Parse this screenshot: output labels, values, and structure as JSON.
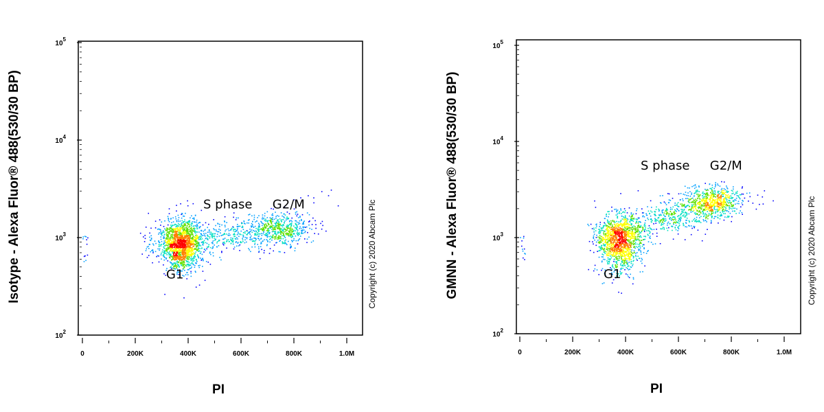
{
  "chart_data": [
    {
      "type": "scatter",
      "panel": "isotype",
      "xlabel": "PI",
      "ylabel": "Isotype - Alexa Fluor® 488(530/30 BP)",
      "x_scale": "linear",
      "y_scale": "log",
      "xlim": [
        0,
        1000000
      ],
      "ylim": [
        100,
        100000
      ],
      "x_ticks": [
        {
          "value": 0,
          "label": "0"
        },
        {
          "value": 200000,
          "label": "200K"
        },
        {
          "value": 400000,
          "label": "400K"
        },
        {
          "value": 600000,
          "label": "600K"
        },
        {
          "value": 800000,
          "label": "800K"
        },
        {
          "value": 1000000,
          "label": "1.0M"
        }
      ],
      "y_ticks": [
        {
          "value": 100,
          "base": "10",
          "exp": "2"
        },
        {
          "value": 1000,
          "base": "10",
          "exp": "3"
        },
        {
          "value": 10000,
          "base": "10",
          "exp": "4"
        },
        {
          "value": 100000,
          "base": "10",
          "exp": "5"
        }
      ],
      "populations": [
        {
          "name": "G1",
          "x_center": 375000,
          "y_center": 850,
          "x_spread": 35000,
          "y_spread_log": 0.13,
          "share": 0.55
        },
        {
          "name": "S phase",
          "x_start": 250000,
          "x_end": 780000,
          "y_start": 900,
          "y_end": 1200,
          "share": 0.3
        },
        {
          "name": "G2/M",
          "x_center": 760000,
          "y_center": 1250,
          "x_spread": 55000,
          "y_spread_log": 0.08,
          "share": 0.15
        }
      ],
      "annotations": [
        {
          "text": "G1",
          "x": 350000,
          "y": 380
        },
        {
          "text": "S phase",
          "x": 550000,
          "y": 2000
        },
        {
          "text": "G2/M",
          "x": 780000,
          "y": 2000
        }
      ],
      "copyright": "Copyright (c) 2020 Abcam Plc",
      "grid": false
    },
    {
      "type": "scatter",
      "panel": "gmnn",
      "xlabel": "PI",
      "ylabel": "GMNN - Alexa Fluor® 488(530/30 BP)",
      "x_scale": "linear",
      "y_scale": "log",
      "xlim": [
        0,
        1000000
      ],
      "ylim": [
        100,
        100000
      ],
      "x_ticks": [
        {
          "value": 0,
          "label": "0"
        },
        {
          "value": 200000,
          "label": "200K"
        },
        {
          "value": 400000,
          "label": "400K"
        },
        {
          "value": 600000,
          "label": "600K"
        },
        {
          "value": 800000,
          "label": "800K"
        },
        {
          "value": 1000000,
          "label": "1.0M"
        }
      ],
      "y_ticks": [
        {
          "value": 100,
          "base": "10",
          "exp": "2"
        },
        {
          "value": 1000,
          "base": "10",
          "exp": "3"
        },
        {
          "value": 10000,
          "base": "10",
          "exp": "4"
        },
        {
          "value": 100000,
          "base": "10",
          "exp": "5"
        }
      ],
      "populations": [
        {
          "name": "G1",
          "x_center": 375000,
          "y_center": 900,
          "x_spread": 40000,
          "y_spread_log": 0.15,
          "share": 0.45
        },
        {
          "name": "S phase",
          "x_start": 300000,
          "x_end": 780000,
          "y_start": 1000,
          "y_end": 2400,
          "share": 0.35
        },
        {
          "name": "G2/M",
          "x_center": 730000,
          "y_center": 2400,
          "x_spread": 60000,
          "y_spread_log": 0.08,
          "share": 0.2
        }
      ],
      "annotations": [
        {
          "text": "G1",
          "x": 350000,
          "y": 380
        },
        {
          "text": "S phase",
          "x": 550000,
          "y": 5100
        },
        {
          "text": "G2/M",
          "x": 780000,
          "y": 5100
        }
      ],
      "copyright": "Copyright (c) 2020 Abcam Plc",
      "grid": false
    }
  ],
  "colors": {
    "density": [
      "#0000ff",
      "#00a0ff",
      "#00e0c0",
      "#60e000",
      "#ffff00",
      "#ff8000",
      "#ff0000"
    ],
    "axis": "#000000",
    "background": "#ffffff"
  }
}
